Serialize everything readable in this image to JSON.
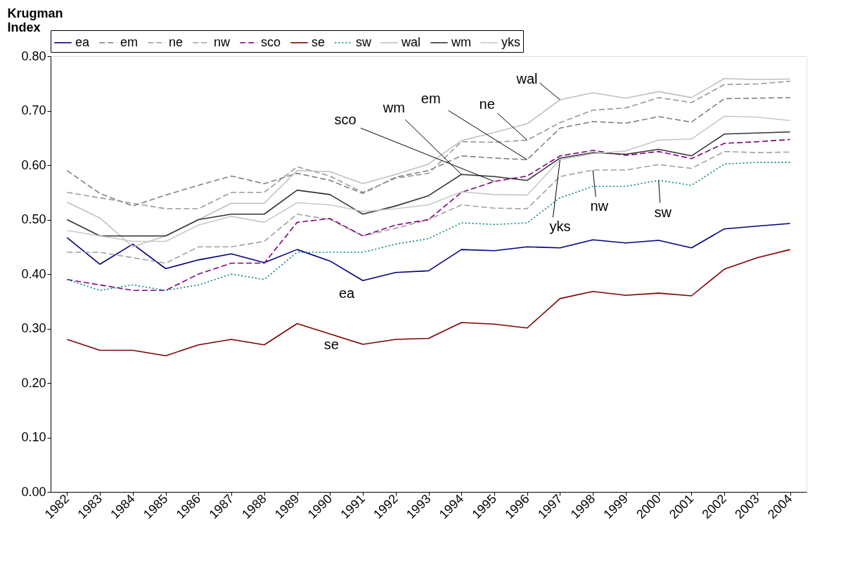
{
  "chart_data": {
    "type": "line",
    "ylabel": "Krugman Index",
    "categories": [
      "1982",
      "1983",
      "1984",
      "1985",
      "1986",
      "1987",
      "1988",
      "1989",
      "1990",
      "1991",
      "1992",
      "1993",
      "1994",
      "1995",
      "1996",
      "1997",
      "1998",
      "1999",
      "2000",
      "2001",
      "2002",
      "2003",
      "2004"
    ],
    "ylim": [
      0,
      0.8
    ],
    "yticks": [
      {
        "value": 0,
        "label": "0.00"
      },
      {
        "value": 0.1,
        "label": "0.10"
      },
      {
        "value": 0.2,
        "label": "0.20"
      },
      {
        "value": 0.3,
        "label": "0.30"
      },
      {
        "value": 0.4,
        "label": "0.40"
      },
      {
        "value": 0.5,
        "label": "0.50"
      },
      {
        "value": 0.6,
        "label": "0.60"
      },
      {
        "value": 0.7,
        "label": "0.70"
      },
      {
        "value": 0.8,
        "label": "0.80"
      }
    ],
    "grid": false,
    "legend": "top",
    "marker": "none",
    "series": [
      {
        "name": "ea",
        "color": "#000080",
        "line_style": "solid",
        "values": [
          0.467,
          0.418,
          0.455,
          0.41,
          0.426,
          0.437,
          0.421,
          0.445,
          0.424,
          0.388,
          0.403,
          0.406,
          0.445,
          0.443,
          0.45,
          0.448,
          0.463,
          0.457,
          0.462,
          0.448,
          0.483,
          0.488,
          0.493
        ]
      },
      {
        "name": "em",
        "color": "#808080",
        "line_style": "dashed",
        "values": [
          0.59,
          0.548,
          0.525,
          0.545,
          0.563,
          0.58,
          0.566,
          0.585,
          0.572,
          0.548,
          0.578,
          0.59,
          0.617,
          0.613,
          0.61,
          0.668,
          0.68,
          0.677,
          0.689,
          0.679,
          0.722,
          0.723,
          0.724
        ]
      },
      {
        "name": "ne",
        "color": "#999999",
        "line_style": "dashed",
        "values": [
          0.55,
          0.54,
          0.53,
          0.52,
          0.52,
          0.55,
          0.55,
          0.597,
          0.58,
          0.55,
          0.576,
          0.585,
          0.643,
          0.642,
          0.646,
          0.678,
          0.701,
          0.705,
          0.724,
          0.715,
          0.748,
          0.749,
          0.754
        ]
      },
      {
        "name": "nw",
        "color": "#a0a0a0",
        "line_style": "dashed",
        "values": [
          0.44,
          0.44,
          0.43,
          0.42,
          0.45,
          0.45,
          0.46,
          0.51,
          0.5,
          0.47,
          0.484,
          0.5,
          0.527,
          0.521,
          0.52,
          0.579,
          0.591,
          0.591,
          0.601,
          0.594,
          0.625,
          0.623,
          0.624
        ]
      },
      {
        "name": "sco",
        "color": "#800080",
        "line_style": "dashed",
        "values": [
          0.39,
          0.38,
          0.37,
          0.37,
          0.4,
          0.42,
          0.42,
          0.495,
          0.502,
          0.47,
          0.49,
          0.5,
          0.55,
          0.57,
          0.58,
          0.617,
          0.627,
          0.618,
          0.625,
          0.612,
          0.64,
          0.643,
          0.647
        ]
      },
      {
        "name": "se",
        "color": "#800000",
        "line_style": "solid",
        "values": [
          0.28,
          0.26,
          0.26,
          0.25,
          0.27,
          0.28,
          0.27,
          0.309,
          0.29,
          0.271,
          0.28,
          0.282,
          0.311,
          0.308,
          0.301,
          0.355,
          0.368,
          0.361,
          0.365,
          0.36,
          0.409,
          0.43,
          0.445
        ]
      },
      {
        "name": "sw",
        "color": "#008080",
        "line_style": "dotted",
        "values": [
          0.39,
          0.37,
          0.38,
          0.37,
          0.38,
          0.4,
          0.39,
          0.44,
          0.44,
          0.44,
          0.455,
          0.465,
          0.494,
          0.491,
          0.494,
          0.54,
          0.561,
          0.561,
          0.572,
          0.563,
          0.602,
          0.605,
          0.605
        ]
      },
      {
        "name": "wal",
        "color": "#c0c0c0",
        "line_style": "solid",
        "values": [
          0.532,
          0.503,
          0.45,
          0.47,
          0.5,
          0.53,
          0.53,
          0.59,
          0.588,
          0.566,
          0.583,
          0.602,
          0.645,
          0.66,
          0.676,
          0.72,
          0.733,
          0.723,
          0.735,
          0.724,
          0.759,
          0.757,
          0.758
        ]
      },
      {
        "name": "wm",
        "color": "#333333",
        "line_style": "solid",
        "values": [
          0.5,
          0.47,
          0.47,
          0.47,
          0.5,
          0.51,
          0.51,
          0.554,
          0.546,
          0.51,
          0.525,
          0.544,
          0.583,
          0.579,
          0.572,
          0.613,
          0.623,
          0.62,
          0.629,
          0.617,
          0.657,
          0.659,
          0.661
        ]
      },
      {
        "name": "yks",
        "color": "#c8c8c8",
        "line_style": "solid",
        "values": [
          0.48,
          0.47,
          0.46,
          0.46,
          0.49,
          0.506,
          0.495,
          0.531,
          0.527,
          0.515,
          0.52,
          0.527,
          0.551,
          0.546,
          0.545,
          0.61,
          0.621,
          0.626,
          0.646,
          0.648,
          0.69,
          0.688,
          0.682
        ]
      }
    ],
    "annotations": [
      {
        "text": "wal",
        "x": "1997",
        "y": 0.72
      },
      {
        "text": "ne",
        "x": "1996",
        "y": 0.646
      },
      {
        "text": "em",
        "x": "1996",
        "y": 0.61
      },
      {
        "text": "wm",
        "x": "1994",
        "y": 0.583
      },
      {
        "text": "sco",
        "x": "1995",
        "y": 0.57
      },
      {
        "text": "yks",
        "x": "1997",
        "y": 0.61
      },
      {
        "text": "nw",
        "x": "1998",
        "y": 0.591
      },
      {
        "text": "sw",
        "x": "2000",
        "y": 0.572
      },
      {
        "text": "ea",
        "x": "1991",
        "y": 0.388
      },
      {
        "text": "se",
        "x": "1990",
        "y": 0.29
      }
    ]
  }
}
